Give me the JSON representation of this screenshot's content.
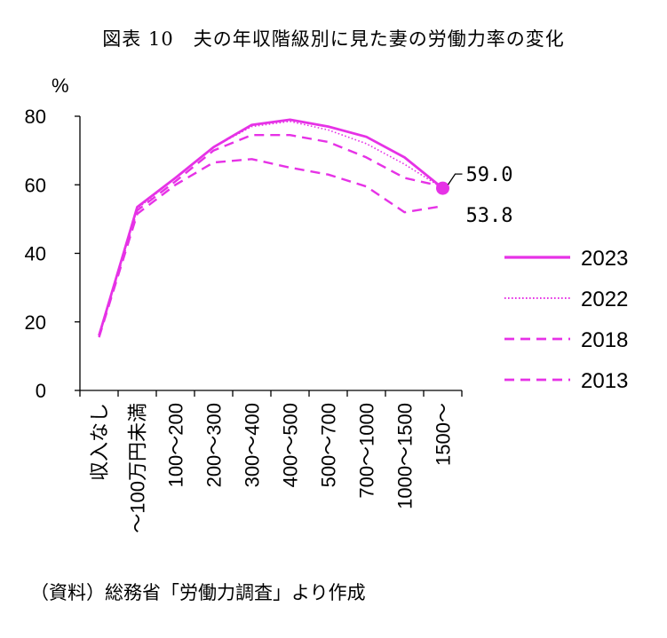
{
  "title": "図表 10　夫の年収階級別に見た妻の労働力率の変化",
  "source": "（資料）総務省「労働力調査」より作成",
  "colors": {
    "line": "#E632E6"
  },
  "chart_data": {
    "type": "line",
    "ylabel": "%",
    "ylim": [
      0,
      80
    ],
    "y_ticks": [
      "0",
      "20",
      "40",
      "60",
      "80"
    ],
    "categories": [
      "収入なし",
      "～100万円未満",
      "100～200",
      "200～300",
      "300～400",
      "400～500",
      "500～700",
      "700～1000",
      "1000～1500",
      "1500～"
    ],
    "legend_position": "right",
    "series": [
      {
        "name": "2023",
        "style": "solid",
        "values": [
          16.0,
          53.5,
          62.0,
          71.0,
          77.5,
          79.0,
          77.0,
          74.0,
          68.0,
          59.0
        ]
      },
      {
        "name": "2022",
        "style": "dotted",
        "values": [
          16.0,
          53.0,
          62.0,
          71.0,
          77.0,
          78.5,
          76.0,
          72.0,
          66.0,
          59.0
        ]
      },
      {
        "name": "2018",
        "style": "dashed",
        "values": [
          16.0,
          52.5,
          61.0,
          70.0,
          74.5,
          74.5,
          72.5,
          68.0,
          62.0,
          59.5
        ]
      },
      {
        "name": "2013",
        "style": "dashed",
        "values": [
          15.5,
          51.5,
          60.0,
          66.5,
          67.5,
          65.0,
          63.0,
          59.5,
          52.0,
          53.8
        ]
      }
    ],
    "annotations": [
      {
        "label": "59.0",
        "series": "2023",
        "value": 59.0
      },
      {
        "label": "53.8",
        "series": "2013",
        "value": 53.8
      }
    ]
  }
}
